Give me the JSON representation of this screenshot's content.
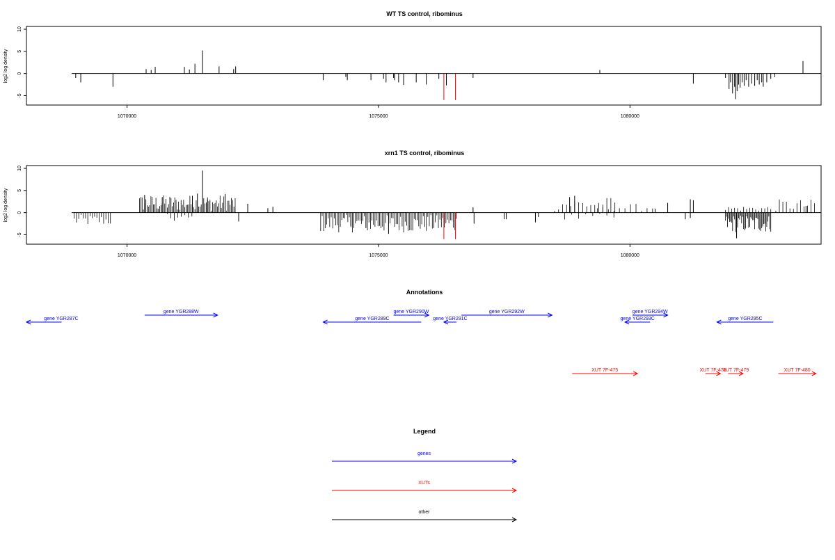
{
  "chart_data": [
    {
      "type": "bar",
      "title": "WT TS control, ribominus",
      "xlabel": "",
      "ylabel": "log2 log density",
      "xlim": [
        1068000,
        1083800
      ],
      "ylim": [
        -6.5,
        10
      ],
      "yticks": [
        -5,
        0,
        5,
        10
      ],
      "xticks": [
        1070000,
        1075000,
        1080000
      ],
      "xtick_labels": [
        "1070000",
        "1075000",
        "1080000"
      ],
      "baseline_x_range": [
        1068900,
        1083800
      ],
      "grid": false,
      "series": [
        {
          "color": "#000000",
          "points": [
            [
              1068980,
              -1.0
            ],
            [
              1069080,
              -2.0
            ],
            [
              1069720,
              -3.0
            ],
            [
              1070380,
              1.0
            ],
            [
              1070480,
              0.8
            ],
            [
              1070560,
              1.5
            ],
            [
              1071140,
              1.5
            ],
            [
              1071240,
              0.9
            ],
            [
              1071350,
              2.2
            ],
            [
              1071500,
              5.2
            ],
            [
              1071830,
              1.6
            ],
            [
              1072120,
              1.0
            ],
            [
              1072160,
              1.6
            ],
            [
              1073900,
              -1.5
            ],
            [
              1074350,
              -0.8
            ],
            [
              1074380,
              -1.5
            ],
            [
              1074850,
              -1.5
            ],
            [
              1075100,
              -1.2
            ],
            [
              1075150,
              -2.0
            ],
            [
              1075300,
              -1.0
            ],
            [
              1075320,
              -1.5
            ],
            [
              1075400,
              -2.0
            ],
            [
              1075500,
              -2.6
            ],
            [
              1075750,
              -2.0
            ],
            [
              1075950,
              -2.5
            ],
            [
              1076200,
              -1.2
            ],
            [
              1076350,
              -2.7
            ],
            [
              1076880,
              -1.0
            ],
            [
              1079400,
              0.8
            ],
            [
              1081260,
              -2.3
            ],
            [
              1081900,
              -1.0
            ],
            [
              1081970,
              -3.5
            ],
            [
              1082000,
              -2.0
            ],
            [
              1082040,
              -4.5
            ],
            [
              1082080,
              -3.0
            ],
            [
              1082100,
              -5.8
            ],
            [
              1082130,
              -4.0
            ],
            [
              1082160,
              -2.5
            ],
            [
              1082190,
              -3.2
            ],
            [
              1082230,
              -2.0
            ],
            [
              1082270,
              -2.8
            ],
            [
              1082310,
              -1.5
            ],
            [
              1082360,
              -3.0
            ],
            [
              1082420,
              -2.3
            ],
            [
              1082480,
              -2.8
            ],
            [
              1082530,
              -1.5
            ],
            [
              1082570,
              -2.5
            ],
            [
              1082620,
              -2.0
            ],
            [
              1082650,
              -3.0
            ],
            [
              1082720,
              -2.0
            ],
            [
              1082800,
              -1.2
            ],
            [
              1082880,
              -0.8
            ],
            [
              1083440,
              2.8
            ]
          ]
        },
        {
          "color": "#ff0000",
          "points": [
            [
              1076300,
              -6.0
            ],
            [
              1076530,
              -6.0
            ]
          ]
        }
      ]
    },
    {
      "type": "bar",
      "title": "xrn1 TS control, ribominus",
      "xlabel": "",
      "ylabel": "log2 log density",
      "xlim": [
        1068000,
        1083800
      ],
      "ylim": [
        -6.5,
        10
      ],
      "yticks": [
        -5,
        0,
        5,
        10
      ],
      "xticks": [
        1070000,
        1075000,
        1080000
      ],
      "xtick_labels": [
        "1070000",
        "1075000",
        "1080000"
      ],
      "baseline_x_range": [
        1068900,
        1083800
      ],
      "grid": false,
      "series": [
        {
          "color": "#000000",
          "dense_segments": [
            {
              "from": 1068950,
              "to": 1069700,
              "step": 45,
              "min": -3.0,
              "max": -0.5
            },
            {
              "from": 1070250,
              "to": 1072150,
              "step": 25,
              "min": 0.3,
              "max": 4.0
            },
            {
              "from": 1070800,
              "to": 1071300,
              "step": 70,
              "min": -2.2,
              "max": -0.3
            },
            {
              "from": 1073850,
              "to": 1076550,
              "step": 30,
              "min": -4.5,
              "max": -0.5
            },
            {
              "from": 1078500,
              "to": 1079700,
              "step": 80,
              "min": 0.3,
              "max": 3.5
            },
            {
              "from": 1079350,
              "to": 1080500,
              "step": 110,
              "min": 0.3,
              "max": 2.0
            },
            {
              "from": 1078700,
              "to": 1079800,
              "step": 140,
              "min": -1.8,
              "max": -0.3
            },
            {
              "from": 1081900,
              "to": 1082800,
              "step": 20,
              "min": -4.5,
              "max": -0.5
            },
            {
              "from": 1081900,
              "to": 1082800,
              "step": 60,
              "min": 0.3,
              "max": 1.5
            },
            {
              "from": 1082900,
              "to": 1083700,
              "step": 70,
              "min": 0.3,
              "max": 3.0
            }
          ],
          "points": [
            [
              1070350,
              4.0
            ],
            [
              1070700,
              3.5
            ],
            [
              1071300,
              3.8
            ],
            [
              1071400,
              4.3
            ],
            [
              1071500,
              9.5
            ],
            [
              1071600,
              3.0
            ],
            [
              1071950,
              4.2
            ],
            [
              1072220,
              -2.0
            ],
            [
              1072400,
              2.0
            ],
            [
              1072800,
              1.0
            ],
            [
              1072900,
              1.3
            ],
            [
              1074450,
              -3.0
            ],
            [
              1074750,
              -3.5
            ],
            [
              1075200,
              -4.8
            ],
            [
              1076880,
              1.2
            ],
            [
              1076900,
              -2.5
            ],
            [
              1077500,
              -1.5
            ],
            [
              1077540,
              -1.5
            ],
            [
              1078120,
              -2.2
            ],
            [
              1078180,
              -1.0
            ],
            [
              1078800,
              3.5
            ],
            [
              1078900,
              3.8
            ],
            [
              1080500,
              0.9
            ],
            [
              1080750,
              2.2
            ],
            [
              1081200,
              3.0
            ],
            [
              1081260,
              2.8
            ],
            [
              1081100,
              -1.5
            ],
            [
              1081200,
              -1.2
            ],
            [
              1082120,
              -5.8
            ],
            [
              1083500,
              1.5
            ]
          ]
        },
        {
          "color": "#ff0000",
          "points": [
            [
              1076300,
              -6.0
            ],
            [
              1076530,
              -6.0
            ]
          ]
        }
      ]
    }
  ],
  "annotations": {
    "title": "Annotations",
    "xlim": [
      1068000,
      1083800
    ],
    "genes": [
      {
        "label": "gene YGR287C",
        "start": 1068000,
        "end": 1068700,
        "dir": "left",
        "row": 1,
        "color": "#0000ff"
      },
      {
        "label": "gene YGR288W",
        "start": 1070350,
        "end": 1071800,
        "dir": "right",
        "row": 0,
        "color": "#0000ff"
      },
      {
        "label": "gene YGR289C",
        "start": 1073900,
        "end": 1075850,
        "dir": "left",
        "row": 1,
        "color": "#0000ff"
      },
      {
        "label": "gene YGR290W",
        "start": 1075300,
        "end": 1076000,
        "dir": "right",
        "row": 0,
        "color": "#0000ff"
      },
      {
        "label": "gene YGR291C",
        "start": 1076300,
        "end": 1076550,
        "dir": "left",
        "row": 1,
        "color": "#0000ff"
      },
      {
        "label": "gene YGR292W",
        "start": 1076650,
        "end": 1078450,
        "dir": "right",
        "row": 0,
        "color": "#0000ff"
      },
      {
        "label": "gene YGR293C",
        "start": 1079900,
        "end": 1080400,
        "dir": "left",
        "row": 1,
        "color": "#0000ff"
      },
      {
        "label": "gene YGR294W",
        "start": 1080050,
        "end": 1080750,
        "dir": "right",
        "row": 0,
        "color": "#0000ff"
      },
      {
        "label": "gene YGR295C",
        "start": 1081730,
        "end": 1082850,
        "dir": "left",
        "row": 1,
        "color": "#0000ff"
      }
    ],
    "xuts": [
      {
        "label": "XUT 7F-475",
        "start": 1078850,
        "end": 1080150,
        "dir": "right",
        "color": "#ff0000"
      },
      {
        "label": "XUT 7F-478",
        "start": 1081500,
        "end": 1081800,
        "dir": "right",
        "color": "#ff0000"
      },
      {
        "label": "XUT 7F-479",
        "start": 1081950,
        "end": 1082250,
        "dir": "right",
        "color": "#ff0000"
      },
      {
        "label": "XUT 7F-480",
        "start": 1082950,
        "end": 1083700,
        "dir": "right",
        "color": "#ff0000"
      }
    ]
  },
  "legend": {
    "title": "Legend",
    "items": [
      {
        "label": "genes",
        "color": "#0000ff"
      },
      {
        "label": "XUTs",
        "color": "#ff0000"
      },
      {
        "label": "other",
        "color": "#000000"
      }
    ]
  }
}
